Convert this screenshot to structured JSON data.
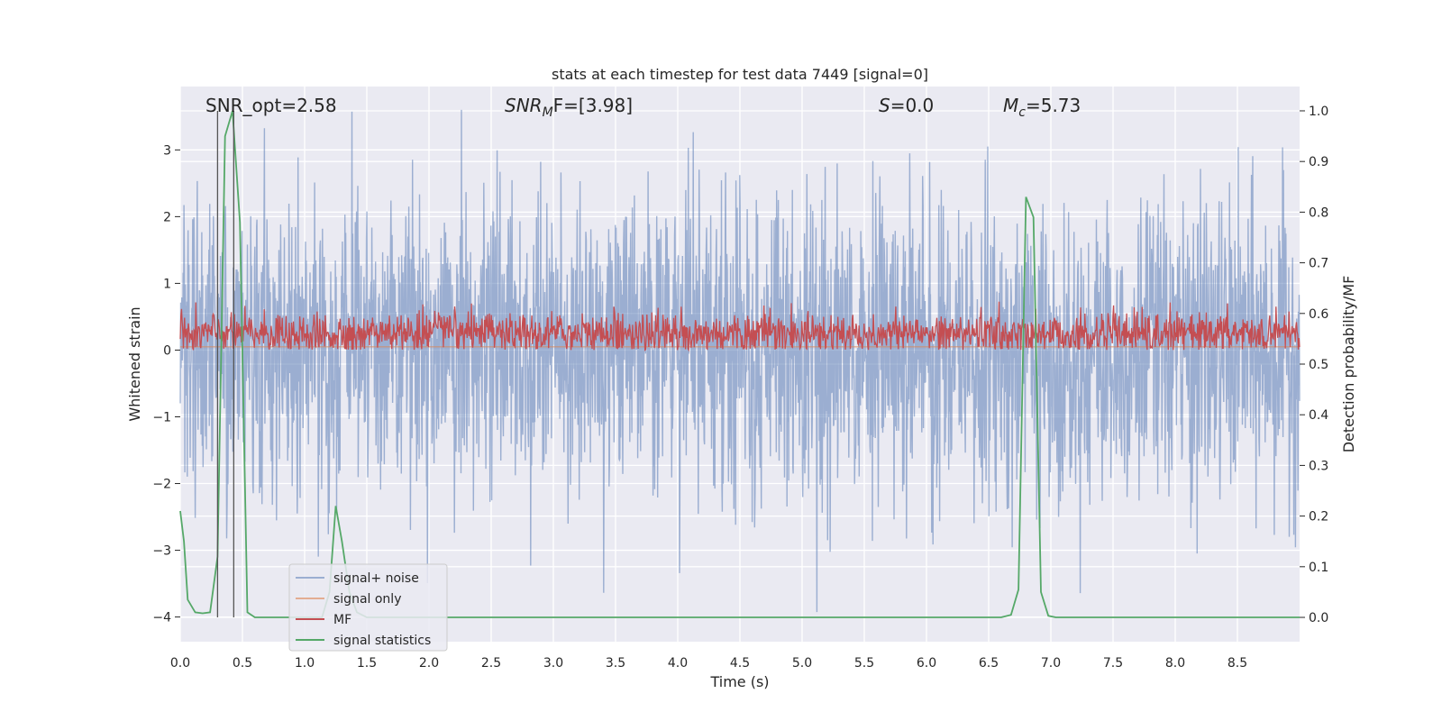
{
  "chart_data": {
    "type": "line",
    "title": "stats at each timestep for test data 7449 [signal=0]",
    "xlabel": "Time (s)",
    "ylabel_left": "Whitened strain",
    "ylabel_right": "Detection probability/MF",
    "xlim": [
      0.0,
      9.0
    ],
    "ylim_left": [
      -4.37,
      3.95
    ],
    "ylim_right": [
      -0.048,
      1.048
    ],
    "x_ticks": [
      0.0,
      0.5,
      1.0,
      1.5,
      2.0,
      2.5,
      3.0,
      3.5,
      4.0,
      4.5,
      5.0,
      5.5,
      6.0,
      6.5,
      7.0,
      7.5,
      8.0,
      8.5
    ],
    "x_tick_labels": [
      "0.0",
      "0.5",
      "1.0",
      "1.5",
      "2.0",
      "2.5",
      "3.0",
      "3.5",
      "4.0",
      "4.5",
      "5.0",
      "5.5",
      "6.0",
      "6.5",
      "7.0",
      "7.5",
      "8.0",
      "8.5"
    ],
    "y_left_ticks": [
      -4,
      -3,
      -2,
      -1,
      0,
      1,
      2,
      3
    ],
    "y_left_tick_labels": [
      "−4",
      "−3",
      "−2",
      "−1",
      "0",
      "1",
      "2",
      "3"
    ],
    "y_right_ticks": [
      0.0,
      0.1,
      0.2,
      0.3,
      0.4,
      0.5,
      0.6,
      0.7,
      0.8,
      0.9,
      1.0
    ],
    "y_right_tick_labels": [
      "0.0",
      "0.1",
      "0.2",
      "0.3",
      "0.4",
      "0.5",
      "0.6",
      "0.7",
      "0.8",
      "0.9",
      "1.0"
    ],
    "grid": true,
    "legend_position": "lower-left",
    "annotations": {
      "snr_opt": "SNR_opt=2.58",
      "snr_mf_label": "SNR",
      "snr_mf_sub": "M",
      "snr_mf_rest": "F=[3.98]",
      "s_label": "S",
      "s_rest": "=0.0",
      "mc_label": "M",
      "mc_sub": "c",
      "mc_rest": "=5.73"
    },
    "vertical_lines_x": [
      0.3,
      0.43
    ],
    "series": [
      {
        "name": "signal+ noise",
        "color": "#4c72b0",
        "alpha": 0.5,
        "axis": "left",
        "envelope": {
          "typical_upper": 1.4,
          "typical_lower": -1.4,
          "max": 3.6,
          "min": -4.0
        },
        "samples": 2700
      },
      {
        "name": "signal only",
        "color": "#dd8452",
        "alpha": 0.6,
        "axis": "left",
        "x": [
          0.0,
          9.0
        ],
        "y": [
          0.05,
          0.05
        ]
      },
      {
        "name": "MF",
        "color": "#c44e52",
        "axis": "left",
        "envelope": {
          "base": 0.0,
          "typical_upper": 0.55,
          "max": 1.0
        },
        "samples": 1800
      },
      {
        "name": "signal statistics",
        "color": "#55a868",
        "axis": "right",
        "x": [
          0.0,
          0.03,
          0.06,
          0.12,
          0.18,
          0.24,
          0.3,
          0.36,
          0.42,
          0.48,
          0.54,
          0.6,
          0.66,
          0.72,
          0.78,
          0.84,
          0.9,
          0.96,
          1.02,
          1.08,
          1.14,
          1.2,
          1.25,
          1.3,
          1.36,
          1.42,
          1.5,
          1.6,
          2.0,
          3.0,
          4.0,
          5.0,
          6.0,
          6.6,
          6.68,
          6.74,
          6.8,
          6.86,
          6.92,
          6.98,
          7.04,
          7.2,
          8.0,
          9.0
        ],
        "y": [
          0.21,
          0.15,
          0.035,
          0.01,
          0.008,
          0.01,
          0.12,
          0.95,
          1.0,
          0.78,
          0.01,
          0.0,
          0.0,
          0.0,
          0.0,
          0.0,
          0.0,
          0.0,
          0.0,
          0.0,
          0.0,
          0.05,
          0.22,
          0.15,
          0.05,
          0.01,
          0.0,
          0.0,
          0.0,
          0.0,
          0.0,
          0.0,
          0.0,
          0.0,
          0.005,
          0.055,
          0.83,
          0.79,
          0.05,
          0.003,
          0.0,
          0.0,
          0.0,
          0.0
        ]
      }
    ]
  }
}
